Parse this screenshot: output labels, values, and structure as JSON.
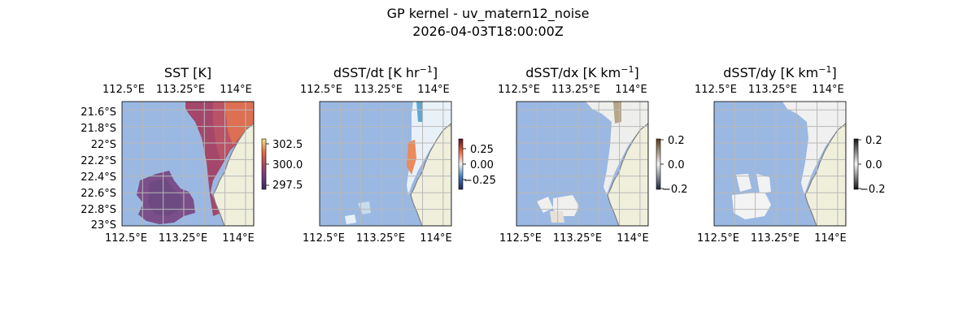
{
  "figure": {
    "title_line1": "GP kernel - uv_matern12_noise",
    "title_line2": "2026-04-03T18:00:00Z"
  },
  "colors": {
    "ocean": "#9bb8e3",
    "land": "#efefdc",
    "coast": "#808080",
    "grid": "#b8b8b8"
  },
  "chart_data": [
    {
      "type": "heatmap",
      "title": "SST [K]",
      "x_ticks": [
        "112.5°E",
        "113.25°E",
        "114°E"
      ],
      "y_ticks": [
        "21.6°S",
        "21.8°S",
        "22°S",
        "22.2°S",
        "22.4°S",
        "22.6°S",
        "22.8°S",
        "23°S"
      ],
      "lon_range": [
        112.5,
        114.1
      ],
      "lat_range": [
        -23.0,
        -21.5
      ],
      "colorbar": {
        "ticks": [
          "302.5",
          "300.0",
          "297.5"
        ],
        "range": [
          297,
          303
        ]
      },
      "grid": true
    },
    {
      "type": "heatmap",
      "title": "dSST/dt [K hr",
      "title_sup": "−1",
      "title_end": "]",
      "x_ticks": [
        "112.5°E",
        "113.25°E",
        "114°E"
      ],
      "lon_range": [
        112.5,
        114.1
      ],
      "lat_range": [
        -23.0,
        -21.5
      ],
      "colorbar": {
        "ticks": [
          "0.25",
          "0.00",
          "−0.25"
        ],
        "range": [
          -0.4,
          0.4
        ]
      },
      "grid": true
    },
    {
      "type": "heatmap",
      "title": "dSST/dx [K km",
      "title_sup": "−1",
      "title_end": "]",
      "x_ticks": [
        "112.5°E",
        "113.25°E",
        "114°E"
      ],
      "lon_range": [
        112.5,
        114.1
      ],
      "lat_range": [
        -23.0,
        -21.5
      ],
      "colorbar": {
        "ticks": [
          "0.2",
          "0.0",
          "−0.2"
        ],
        "range": [
          -0.2,
          0.2
        ]
      },
      "grid": true
    },
    {
      "type": "heatmap",
      "title": "dSST/dy [K km",
      "title_sup": "−1",
      "title_end": "]",
      "x_ticks": [
        "112.5°E",
        "113.25°E",
        "114°E"
      ],
      "lon_range": [
        112.5,
        114.1
      ],
      "lat_range": [
        -23.0,
        -21.5
      ],
      "colorbar": {
        "ticks": [
          "0.2",
          "0.0",
          "−0.2"
        ],
        "range": [
          -0.2,
          0.2
        ]
      },
      "grid": true
    }
  ]
}
